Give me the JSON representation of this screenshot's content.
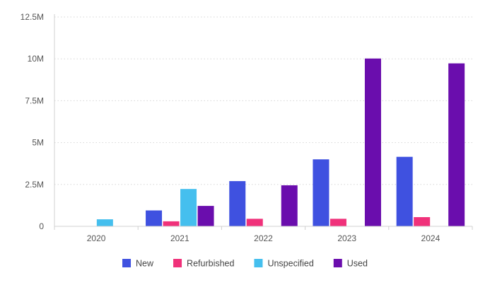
{
  "chart_data": {
    "type": "bar",
    "categories": [
      "2020",
      "2021",
      "2022",
      "2023",
      "2024"
    ],
    "series": [
      {
        "name": "New",
        "color": "#3f51e0",
        "values": [
          0,
          950000,
          2700000,
          4000000,
          4150000
        ]
      },
      {
        "name": "Refurbished",
        "color": "#f0317a",
        "values": [
          0,
          300000,
          450000,
          450000,
          550000
        ]
      },
      {
        "name": "Unspecified",
        "color": "#45bfee",
        "values": [
          420000,
          2230000,
          0,
          0,
          0
        ]
      },
      {
        "name": "Used",
        "color": "#6a0dad",
        "values": [
          0,
          1220000,
          2450000,
          10020000,
          9730000
        ]
      }
    ],
    "ylim": [
      0,
      12500000
    ],
    "yticks": [
      {
        "value": 0,
        "label": "0"
      },
      {
        "value": 2500000,
        "label": "2.5M"
      },
      {
        "value": 5000000,
        "label": "5M"
      },
      {
        "value": 7500000,
        "label": "7.5M"
      },
      {
        "value": 10000000,
        "label": "10M"
      },
      {
        "value": 12500000,
        "label": "12.5M"
      }
    ],
    "grid": true,
    "legend": "bottom-center"
  }
}
